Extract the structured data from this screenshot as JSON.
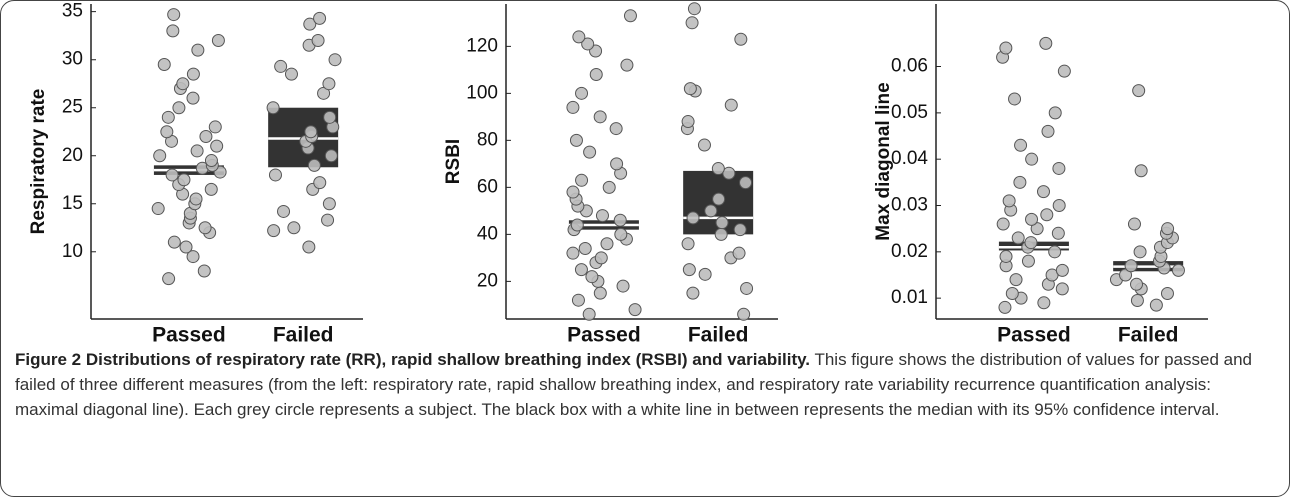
{
  "chart_data": [
    {
      "type": "strip",
      "ylabel": "Respiratory rate",
      "categories": [
        "Passed",
        "Failed"
      ],
      "ylim": [
        3,
        35.8
      ],
      "yticks": [
        10,
        15,
        20,
        25,
        30,
        35
      ],
      "groups": [
        {
          "values": [
            7.2,
            8,
            9.5,
            10.5,
            11,
            12,
            12.5,
            13,
            13.5,
            14,
            14.5,
            15,
            15.5,
            16,
            16.5,
            17,
            17.5,
            18,
            18.3,
            18.7,
            19,
            19.5,
            20,
            20.5,
            21,
            21.5,
            22,
            22.5,
            23,
            24,
            25,
            26,
            27,
            27.5,
            28.5,
            29.5,
            31,
            32,
            33,
            34.7
          ],
          "median": 18.5,
          "ci": [
            18,
            19
          ]
        },
        {
          "values": [
            10.5,
            12.2,
            12.5,
            13.3,
            14.2,
            15,
            16.5,
            17.2,
            18,
            19,
            20,
            20.8,
            21.5,
            22,
            22.5,
            23,
            24,
            25,
            26.5,
            27.5,
            28.5,
            29.3,
            30,
            31.5,
            32,
            33.7,
            34.3
          ],
          "median": 21.8,
          "ci": [
            18.8,
            25
          ]
        }
      ]
    },
    {
      "type": "strip",
      "ylabel": "RSBI",
      "categories": [
        "Passed",
        "Failed"
      ],
      "ylim": [
        4,
        138
      ],
      "yticks": [
        20,
        40,
        60,
        80,
        100,
        120
      ],
      "groups": [
        {
          "values": [
            6,
            8,
            12,
            15,
            18,
            20,
            22,
            25,
            28,
            30,
            32,
            34,
            36,
            38,
            40,
            42,
            44,
            46,
            48,
            50,
            52,
            55,
            58,
            60,
            63,
            66,
            70,
            75,
            80,
            85,
            90,
            94,
            100,
            108,
            112,
            118,
            121,
            124,
            133
          ],
          "median": 44,
          "ci": [
            42,
            46
          ]
        },
        {
          "values": [
            6,
            15,
            17,
            23,
            25,
            30,
            32,
            36,
            40,
            42,
            45,
            47,
            50,
            55,
            62,
            66,
            68,
            78,
            85,
            88,
            95,
            101,
            102,
            123,
            130,
            136
          ],
          "median": 47,
          "ci": [
            40,
            67
          ]
        }
      ]
    },
    {
      "type": "strip",
      "ylabel": "Max diagonal line",
      "categories": [
        "Passed",
        "Failed"
      ],
      "ylim": [
        0.0055,
        0.0735
      ],
      "yticks": [
        0.01,
        0.02,
        0.03,
        0.04,
        0.05,
        0.06
      ],
      "groups": [
        {
          "values": [
            0.008,
            0.009,
            0.01,
            0.011,
            0.012,
            0.013,
            0.014,
            0.015,
            0.016,
            0.017,
            0.018,
            0.019,
            0.02,
            0.021,
            0.022,
            0.023,
            0.024,
            0.025,
            0.026,
            0.027,
            0.028,
            0.029,
            0.03,
            0.031,
            0.033,
            0.035,
            0.038,
            0.04,
            0.043,
            0.046,
            0.05,
            0.053,
            0.059,
            0.062,
            0.064,
            0.065
          ],
          "median": 0.021,
          "ci": [
            0.0203,
            0.0222
          ]
        },
        {
          "values": [
            0.0085,
            0.0095,
            0.011,
            0.012,
            0.013,
            0.014,
            0.015,
            0.016,
            0.0165,
            0.017,
            0.018,
            0.019,
            0.02,
            0.021,
            0.022,
            0.023,
            0.024,
            0.025,
            0.026,
            0.0375,
            0.0548
          ],
          "median": 0.0168,
          "ci": [
            0.0158,
            0.018
          ]
        }
      ]
    }
  ],
  "caption": {
    "title": "Figure 2 Distributions of respiratory rate (RR), rapid shallow breathing index (RSBI) and variability.",
    "text": "This figure shows the distribution of values for passed and failed of three different measures (from the left: respiratory rate, rapid shallow breathing index, and respiratory rate variability recurrence quantification analysis: maximal diagonal line). Each grey circle represents a subject. The black box with a white line in between represents the median with its 95% confidence interval."
  }
}
